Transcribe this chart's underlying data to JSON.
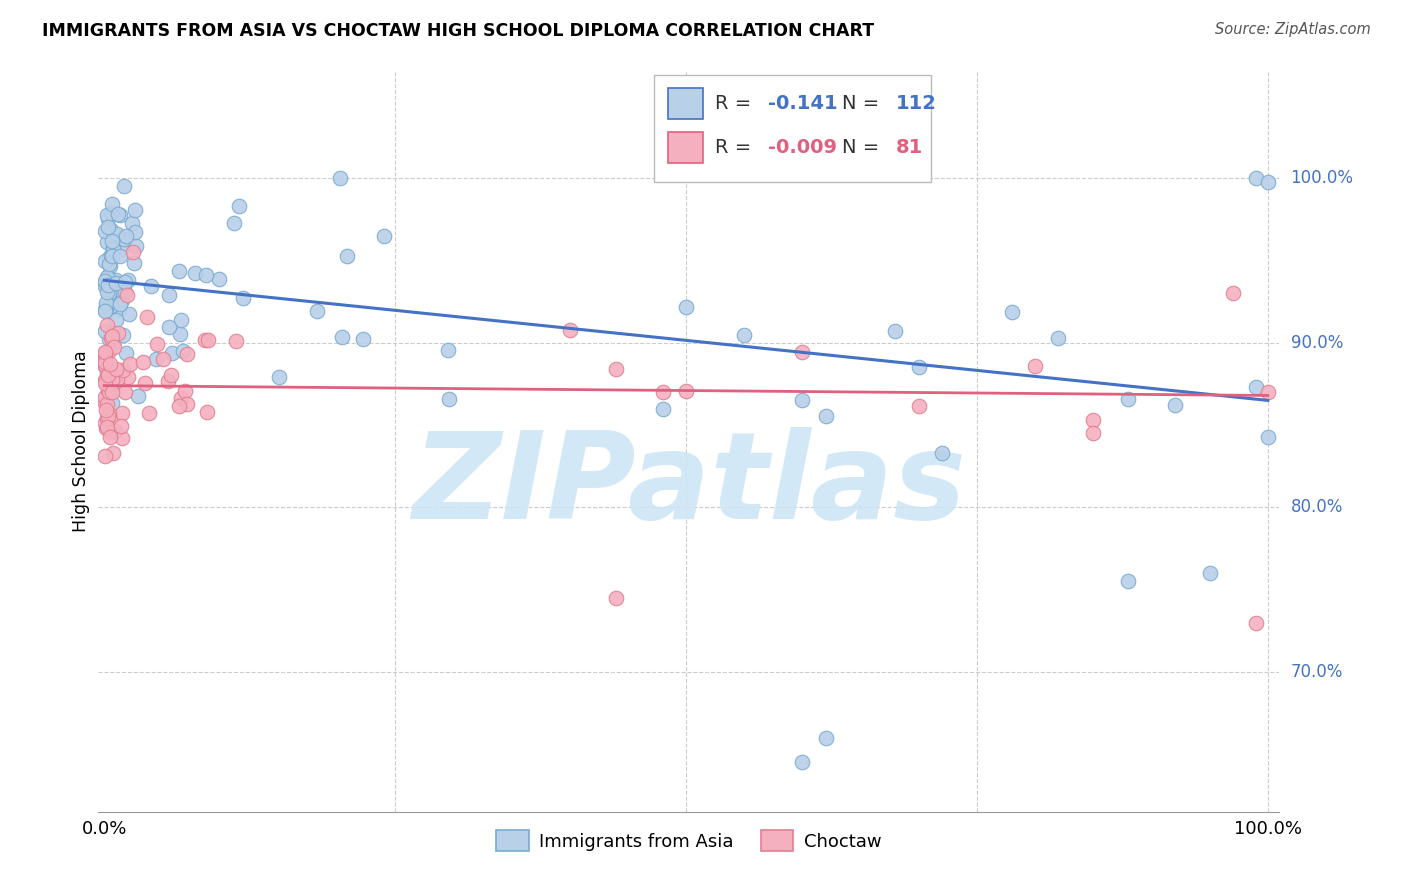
{
  "title": "IMMIGRANTS FROM ASIA VS CHOCTAW HIGH SCHOOL DIPLOMA CORRELATION CHART",
  "source": "Source: ZipAtlas.com",
  "ylabel": "High School Diploma",
  "legend_label1": "Immigrants from Asia",
  "legend_label2": "Choctaw",
  "r1": "-0.141",
  "n1": "112",
  "r2": "-0.009",
  "n2": "81",
  "blue_color": "#b8d0e8",
  "pink_color": "#f5b0c0",
  "blue_edge_color": "#7aaacf",
  "pink_edge_color": "#e08090",
  "blue_line_color": "#4472c4",
  "pink_line_color": "#e06080",
  "watermark_color": "#cce4f5",
  "grid_color": "#cccccc",
  "ytick_color": "#4472c4",
  "ytick_vals": [
    0.7,
    0.8,
    0.9,
    1.0
  ],
  "ytick_labels": [
    "70.0%",
    "80.0%",
    "90.0%",
    "100.0%"
  ],
  "xlim": [
    -0.005,
    1.01
  ],
  "ylim": [
    0.615,
    1.065
  ],
  "blue_trend_start": 0.938,
  "blue_trend_end": 0.865,
  "pink_trend_start": 0.874,
  "pink_trend_end": 0.868
}
